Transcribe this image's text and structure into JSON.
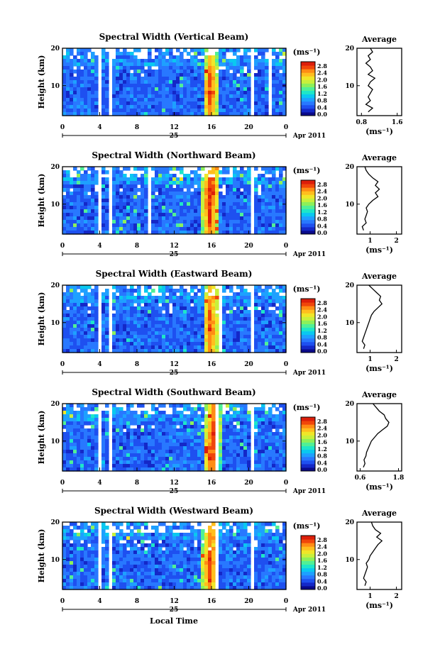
{
  "common": {
    "ylabel": "Height (km)",
    "date_label": "Apr 2011",
    "day_label": "25",
    "xlabel": "Local Time",
    "cbar_unit": "(ms⁻¹)",
    "avg_title": "Average",
    "avg_xlabel": "(ms⁻¹)"
  },
  "colors": {
    "scale": [
      "#0a0a8a",
      "#1428c8",
      "#1e50f0",
      "#2878ff",
      "#1ea0ff",
      "#0ac8f0",
      "#1ee6c8",
      "#50f096",
      "#8cf05a",
      "#c8f03c",
      "#f0e628",
      "#ffbe1e",
      "#ff8c14",
      "#f0460a",
      "#dc1e0a"
    ]
  },
  "chart_data": [
    {
      "type": "heatmap",
      "title": "Spectral Width (Vertical Beam)",
      "x_ticks": [
        "0",
        "4",
        "8",
        "12",
        "16",
        "20",
        "0"
      ],
      "xlim": [
        0,
        24
      ],
      "y_ticks": [
        "20",
        "10"
      ],
      "ylim": [
        2,
        20
      ],
      "colorbar_ticks": [
        "2.8",
        "2.4",
        "2.0",
        "1.6",
        "1.2",
        "0.8",
        "0.4",
        "0.0"
      ],
      "gaps_hours": [
        [
          3.9,
          4.2
        ],
        [
          5.0,
          5.4
        ],
        [
          20.2,
          20.7
        ],
        [
          22.0,
          22.3
        ]
      ],
      "hotspots": [
        {
          "t": 15.9,
          "h": 8,
          "v": 2.7
        },
        {
          "t": 15.9,
          "h": 11,
          "v": 2.5
        }
      ],
      "average_profile": {
        "x_ticks": [
          "0.8",
          "1.6"
        ],
        "xlim": [
          0.7,
          1.7
        ],
        "y_ticks": [
          "20",
          "10"
        ],
        "heights": [
          3,
          4,
          5,
          6,
          7,
          8,
          9,
          10,
          11,
          12,
          13,
          14,
          15,
          16,
          17,
          18,
          19,
          20
        ],
        "values": [
          0.95,
          1.05,
          0.9,
          1.0,
          0.95,
          1.0,
          1.05,
          0.95,
          1.0,
          1.1,
          0.95,
          1.05,
          1.0,
          0.9,
          1.0,
          0.95,
          1.05,
          1.0
        ]
      }
    },
    {
      "type": "heatmap",
      "title": "Spectral Width (Northward Beam)",
      "x_ticks": [
        "0",
        "4",
        "8",
        "12",
        "16",
        "20",
        "0"
      ],
      "xlim": [
        0,
        24
      ],
      "y_ticks": [
        "20",
        "10"
      ],
      "ylim": [
        2,
        20
      ],
      "colorbar_ticks": [
        "2.8",
        "2.4",
        "2.0",
        "1.6",
        "1.2",
        "0.8",
        "0.4",
        "0.0"
      ],
      "gaps_hours": [
        [
          3.8,
          4.2
        ],
        [
          4.9,
          5.3
        ],
        [
          9.2,
          9.5
        ],
        [
          20.3,
          20.6
        ]
      ],
      "hotspots": [
        {
          "t": 15.8,
          "h": 10,
          "v": 2.8
        },
        {
          "t": 16.1,
          "h": 14,
          "v": 2.6
        }
      ],
      "average_profile": {
        "x_ticks": [
          "1",
          "2"
        ],
        "xlim": [
          0.5,
          2.2
        ],
        "y_ticks": [
          "20",
          "10"
        ],
        "heights": [
          3,
          4,
          5,
          6,
          7,
          8,
          9,
          10,
          11,
          12,
          13,
          14,
          15,
          16,
          17,
          18,
          19,
          20
        ],
        "values": [
          0.75,
          0.7,
          0.85,
          0.8,
          0.85,
          0.9,
          0.85,
          0.95,
          1.1,
          1.3,
          1.2,
          1.35,
          1.2,
          1.3,
          1.1,
          0.95,
          0.85,
          0.8
        ]
      }
    },
    {
      "type": "heatmap",
      "title": "Spectral Width (Eastward Beam)",
      "x_ticks": [
        "0",
        "4",
        "8",
        "12",
        "16",
        "20",
        "0"
      ],
      "xlim": [
        0,
        24
      ],
      "y_ticks": [
        "20",
        "10"
      ],
      "ylim": [
        2,
        20
      ],
      "colorbar_ticks": [
        "2.8",
        "2.4",
        "2.0",
        "1.6",
        "1.2",
        "0.8",
        "0.4",
        "0.0"
      ],
      "gaps_hours": [
        [
          3.8,
          4.1
        ],
        [
          5.0,
          5.4
        ],
        [
          16.7,
          17.1
        ],
        [
          20.1,
          20.6
        ]
      ],
      "hotspots": [
        {
          "t": 15.9,
          "h": 9,
          "v": 2.7
        },
        {
          "t": 16.0,
          "h": 17,
          "v": 2.5
        }
      ],
      "average_profile": {
        "x_ticks": [
          "1",
          "2"
        ],
        "xlim": [
          0.5,
          2.2
        ],
        "y_ticks": [
          "20",
          "10"
        ],
        "heights": [
          3,
          4,
          5,
          6,
          7,
          8,
          9,
          10,
          11,
          12,
          13,
          14,
          15,
          16,
          17,
          18,
          19,
          20
        ],
        "values": [
          0.75,
          0.8,
          0.7,
          0.75,
          0.8,
          0.85,
          0.9,
          0.95,
          1.0,
          1.05,
          1.15,
          1.3,
          1.45,
          1.35,
          1.4,
          1.25,
          1.1,
          0.95
        ]
      }
    },
    {
      "type": "heatmap",
      "title": "Spectral Width (Southward Beam)",
      "x_ticks": [
        "0",
        "4",
        "8",
        "12",
        "16",
        "20",
        "0"
      ],
      "xlim": [
        0,
        24
      ],
      "y_ticks": [
        "20",
        "10"
      ],
      "ylim": [
        2,
        20
      ],
      "colorbar_ticks": [
        "2.8",
        "2.4",
        "2.0",
        "1.6",
        "1.2",
        "0.8",
        "0.4",
        "0.0"
      ],
      "gaps_hours": [
        [
          3.8,
          4.2
        ],
        [
          4.9,
          5.3
        ],
        [
          16.4,
          16.8
        ],
        [
          20.2,
          20.6
        ]
      ],
      "hotspots": [
        {
          "t": 16.0,
          "h": 6,
          "v": 2.8
        },
        {
          "t": 16.2,
          "h": 13,
          "v": 2.6
        }
      ],
      "average_profile": {
        "x_ticks": [
          "0.6",
          "1.8"
        ],
        "xlim": [
          0.5,
          1.9
        ],
        "y_ticks": [
          "20",
          "10"
        ],
        "heights": [
          3,
          4,
          5,
          6,
          7,
          8,
          9,
          10,
          11,
          12,
          13,
          14,
          15,
          16,
          17,
          18,
          19,
          20
        ],
        "values": [
          0.7,
          0.75,
          0.72,
          0.78,
          0.8,
          0.85,
          0.9,
          0.95,
          1.05,
          1.15,
          1.3,
          1.45,
          1.5,
          1.4,
          1.35,
          1.2,
          1.1,
          1.0
        ]
      }
    },
    {
      "type": "heatmap",
      "title": "Spectral Width (Westward Beam)",
      "x_ticks": [
        "0",
        "4",
        "8",
        "12",
        "16",
        "20",
        "0"
      ],
      "xlim": [
        0,
        24
      ],
      "y_ticks": [
        "20",
        "10"
      ],
      "ylim": [
        2,
        20
      ],
      "colorbar_ticks": [
        "2.8",
        "2.4",
        "2.0",
        "1.6",
        "1.2",
        "0.8",
        "0.4",
        "0.0"
      ],
      "gaps_hours": [
        [
          3.8,
          4.2
        ],
        [
          5.0,
          5.4
        ],
        [
          16.5,
          16.8
        ],
        [
          20.1,
          20.5
        ]
      ],
      "hotspots": [
        {
          "t": 15.8,
          "h": 8,
          "v": 2.7
        },
        {
          "t": 16.0,
          "h": 16,
          "v": 2.5
        }
      ],
      "average_profile": {
        "x_ticks": [
          "1",
          "2"
        ],
        "xlim": [
          0.5,
          2.2
        ],
        "y_ticks": [
          "20",
          "10"
        ],
        "heights": [
          3,
          4,
          5,
          6,
          7,
          8,
          9,
          10,
          11,
          12,
          13,
          14,
          15,
          16,
          17,
          18,
          19,
          20
        ],
        "values": [
          0.8,
          0.85,
          0.75,
          0.8,
          0.85,
          0.9,
          0.85,
          0.95,
          1.0,
          1.1,
          1.2,
          1.3,
          1.45,
          1.25,
          1.4,
          1.2,
          1.1,
          1.05
        ]
      }
    }
  ]
}
